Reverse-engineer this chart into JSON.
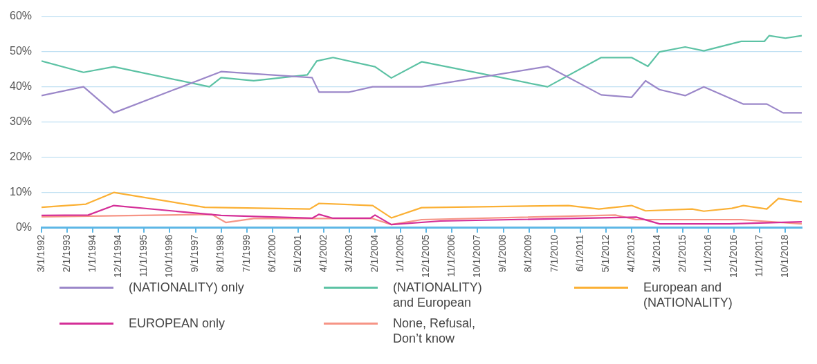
{
  "chart_data": {
    "type": "line",
    "xlim": [
      "1992-03",
      "2019-05"
    ],
    "xticks": [
      {
        "value": "1992-03",
        "label": "3/1/1992"
      },
      {
        "value": "1993-02",
        "label": "2/1/1993"
      },
      {
        "value": "1994-01",
        "label": "1/1/1994"
      },
      {
        "value": "1994-12",
        "label": "12/1/1994"
      },
      {
        "value": "1995-11",
        "label": "11/1/1995"
      },
      {
        "value": "1996-10",
        "label": "10/1/1996"
      },
      {
        "value": "1997-09",
        "label": "9/1/1997"
      },
      {
        "value": "1998-08",
        "label": "8/1/1998"
      },
      {
        "value": "1999-07",
        "label": "7/1/1999"
      },
      {
        "value": "2000-06",
        "label": "6/1/2000"
      },
      {
        "value": "2001-05",
        "label": "5/1/2001"
      },
      {
        "value": "2002-04",
        "label": "4/1/2002"
      },
      {
        "value": "2003-03",
        "label": "3/1/2003"
      },
      {
        "value": "2004-02",
        "label": "2/1/2004"
      },
      {
        "value": "2005-01",
        "label": "1/1/2005"
      },
      {
        "value": "2005-12",
        "label": "12/1/2005"
      },
      {
        "value": "2006-11",
        "label": "11/1/2006"
      },
      {
        "value": "2007-10",
        "label": "10/1/2007"
      },
      {
        "value": "2008-09",
        "label": "9/1/2008"
      },
      {
        "value": "2009-08",
        "label": "8/1/2009"
      },
      {
        "value": "2010-07",
        "label": "7/1/2010"
      },
      {
        "value": "2011-06",
        "label": "6/1/2011"
      },
      {
        "value": "2012-05",
        "label": "5/1/2012"
      },
      {
        "value": "2013-04",
        "label": "4/1/2013"
      },
      {
        "value": "2014-03",
        "label": "3/1/2014"
      },
      {
        "value": "2015-02",
        "label": "2/1/2015"
      },
      {
        "value": "2016-01",
        "label": "1/1/2016"
      },
      {
        "value": "2016-12",
        "label": "12/1/2016"
      },
      {
        "value": "2017-11",
        "label": "11/1/2017"
      },
      {
        "value": "2018-10",
        "label": "10/1/2018"
      }
    ],
    "ylim": [
      0,
      60
    ],
    "yticks": [
      {
        "value": 0,
        "label": "0%"
      },
      {
        "value": 10,
        "label": "10%"
      },
      {
        "value": 20,
        "label": "20%"
      },
      {
        "value": 30,
        "label": "30%"
      },
      {
        "value": 40,
        "label": "40%"
      },
      {
        "value": 50,
        "label": "50%"
      },
      {
        "value": 60,
        "label": "60%"
      }
    ],
    "grid": "y",
    "legend": "bottom",
    "marker": "none",
    "line_style": "solid",
    "series": [
      {
        "name": "(NATIONALITY) only",
        "color": "#9b87c9",
        "x": [
          "1992-03",
          "1993-09",
          "1994-10",
          "1998-08",
          "2001-11",
          "2002-02",
          "2003-03",
          "2004-01",
          "2005-10",
          "2010-04",
          "2012-03",
          "2013-04",
          "2013-10",
          "2014-04",
          "2015-03",
          "2015-11",
          "2017-04",
          "2018-02",
          "2018-09",
          "2019-05"
        ],
        "values": [
          37.5,
          40,
          32.6,
          44.3,
          42.6,
          38.5,
          38.5,
          40,
          40,
          45.8,
          37.7,
          37,
          41.7,
          39.2,
          37.5,
          40,
          35.1,
          35.1,
          32.6,
          32.6
        ]
      },
      {
        "name": "(NATIONALITY) and European",
        "color": "#5cc2a4",
        "x": [
          "1992-03",
          "1993-09",
          "1994-10",
          "1998-03",
          "1998-08",
          "1999-10",
          "2001-09",
          "2002-01",
          "2002-08",
          "2004-02",
          "2004-09",
          "2005-10",
          "2010-04",
          "2012-03",
          "2013-04",
          "2013-11",
          "2014-04",
          "2015-03",
          "2015-11",
          "2017-03",
          "2018-01",
          "2018-03",
          "2018-10",
          "2019-05"
        ],
        "values": [
          47.3,
          44.1,
          45.7,
          40,
          42.6,
          41.7,
          43.4,
          47.3,
          48.3,
          45.7,
          42.5,
          47.1,
          40,
          48.3,
          48.3,
          45.8,
          49.9,
          51.3,
          50.2,
          52.9,
          52.9,
          54.5,
          53.8,
          54.5
        ]
      },
      {
        "name": "European and (NATIONALITY)",
        "color": "#fbb034",
        "x": [
          "1992-03",
          "1993-10",
          "1994-10",
          "1998-01",
          "2001-10",
          "2002-02",
          "2004-01",
          "2004-09",
          "2005-10",
          "2011-01",
          "2012-02",
          "2013-04",
          "2013-10",
          "2015-06",
          "2015-11",
          "2016-11",
          "2017-04",
          "2018-02",
          "2018-07",
          "2019-05"
        ],
        "values": [
          5.8,
          6.7,
          10,
          5.8,
          5.3,
          6.9,
          6.3,
          2.8,
          5.7,
          6.3,
          5.3,
          6.3,
          4.8,
          5.3,
          4.7,
          5.5,
          6.3,
          5.3,
          8.3,
          7.3
        ]
      },
      {
        "name": "EUROPEAN only",
        "color": "#d42e97",
        "x": [
          "1992-03",
          "1993-11",
          "1994-10",
          "1998-08",
          "2001-11",
          "2002-02",
          "2002-08",
          "2003-12",
          "2004-02",
          "2004-09",
          "2006-06",
          "2013-06",
          "2014-04",
          "2016-10",
          "2019-05"
        ],
        "values": [
          3.5,
          3.6,
          6.3,
          3.5,
          2.7,
          3.8,
          2.7,
          2.7,
          3.6,
          0.9,
          1.9,
          3,
          1.1,
          1.1,
          1.7
        ]
      },
      {
        "name": "None, Refusal, Don’t know",
        "color": "#f69485",
        "x": [
          "1992-03",
          "1998-04",
          "1998-10",
          "1999-10",
          "2004-01",
          "2004-09",
          "2005-10",
          "2012-09",
          "2013-06",
          "2017-03",
          "2019-05"
        ],
        "values": [
          3.1,
          3.8,
          1.5,
          2.6,
          2.6,
          0.9,
          2.3,
          3.6,
          2.3,
          2.3,
          1.1
        ]
      }
    ]
  }
}
